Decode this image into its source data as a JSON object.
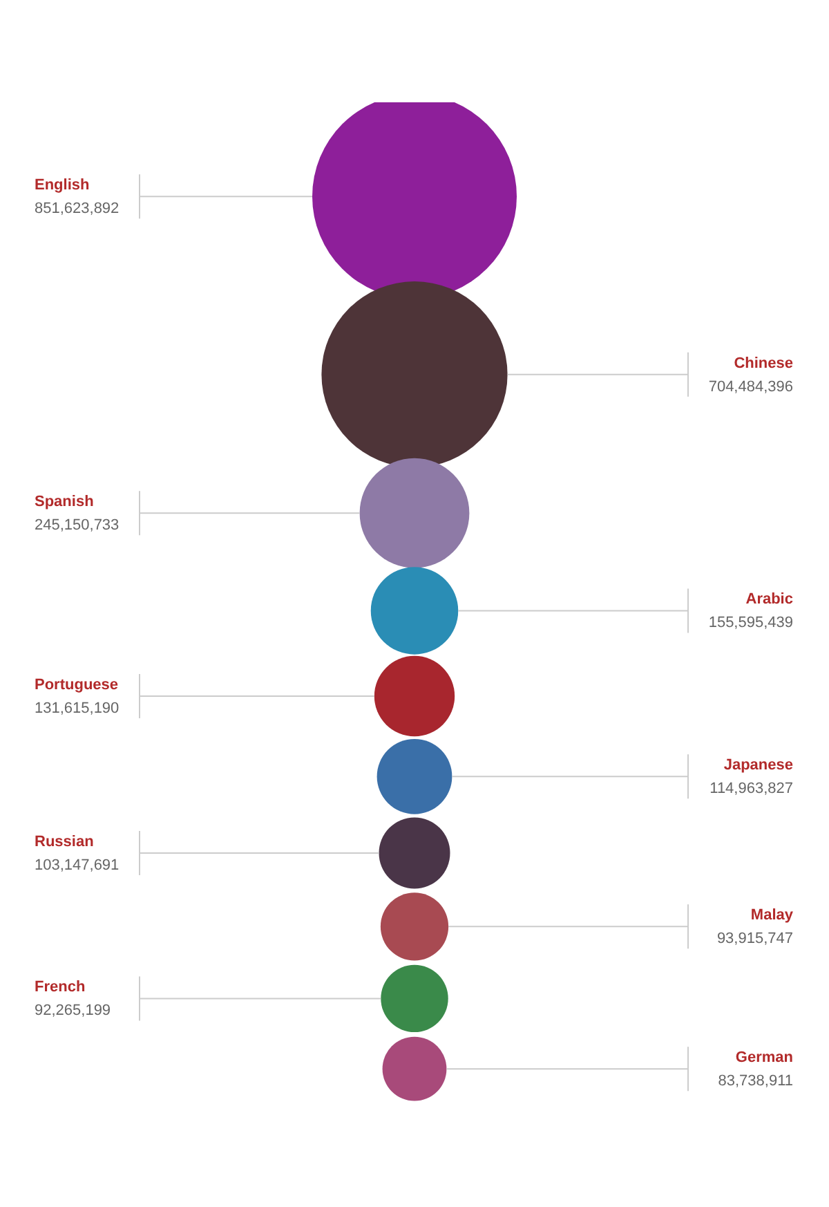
{
  "chart_data": {
    "type": "other",
    "categories": [
      "English",
      "Chinese",
      "Spanish",
      "Arabic",
      "Portuguese",
      "Japanese",
      "Russian",
      "Malay",
      "French",
      "German"
    ],
    "values": [
      851623892,
      704484396,
      245150733,
      155595439,
      131615190,
      114963827,
      103147691,
      93915747,
      92265199,
      83738911
    ],
    "colors": [
      "#8e1f9a",
      "#4e3438",
      "#8e7aa6",
      "#2a8db5",
      "#a8262e",
      "#3a6fa8",
      "#4a3548",
      "#a84a52",
      "#3a8a4a",
      "#a84a7a"
    ],
    "value_labels": [
      "851,623,892",
      "704,484,396",
      "245,150,733",
      "155,595,439",
      "131,615,190",
      "114,963,827",
      "103,147,691",
      "93,915,747",
      "92,265,199",
      "83,738,911"
    ]
  }
}
